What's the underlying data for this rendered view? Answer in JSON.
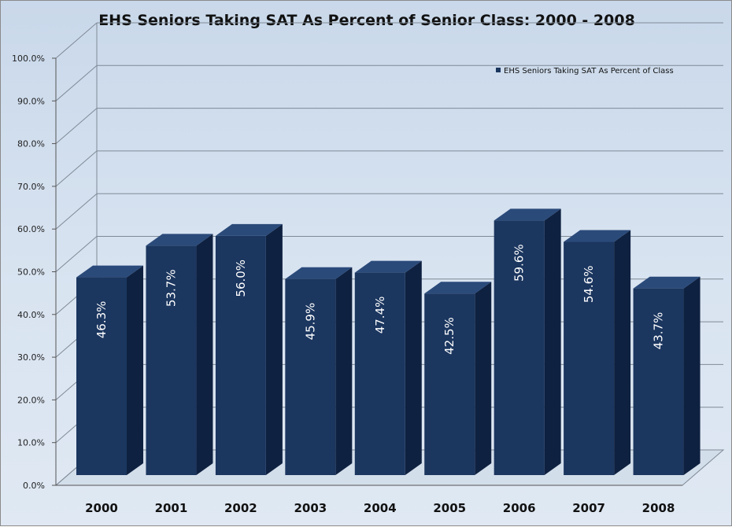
{
  "chart_data": {
    "type": "bar",
    "title": "EHS Seniors Taking SAT As Percent of Senior Class: 2000 - 2008",
    "categories": [
      "2000",
      "2001",
      "2002",
      "2003",
      "2004",
      "2005",
      "2006",
      "2007",
      "2008"
    ],
    "series": [
      {
        "name": "EHS Seniors Taking SAT As Percent of Class",
        "values": [
          46.3,
          53.7,
          56.0,
          45.9,
          47.4,
          42.5,
          59.6,
          54.6,
          43.7
        ],
        "labels": [
          "46.3%",
          "53.7%",
          "56.0%",
          "45.9%",
          "47.4%",
          "42.5%",
          "59.6%",
          "54.6%",
          "43.7%"
        ]
      }
    ],
    "yticks": [
      "0.0%",
      "10.0%",
      "20.0%",
      "30.0%",
      "40.0%",
      "50.0%",
      "60.0%",
      "70.0%",
      "80.0%",
      "90.0%",
      "100.0%"
    ],
    "ylim": [
      0,
      100
    ],
    "xlabel": "",
    "ylabel": "",
    "grid": true,
    "legend_position": "top-right",
    "colors": {
      "bar_front": "#1b365f",
      "bar_side": "#0f2140",
      "bar_top": "#2a4a7a",
      "grid": "#7f8a96"
    }
  }
}
